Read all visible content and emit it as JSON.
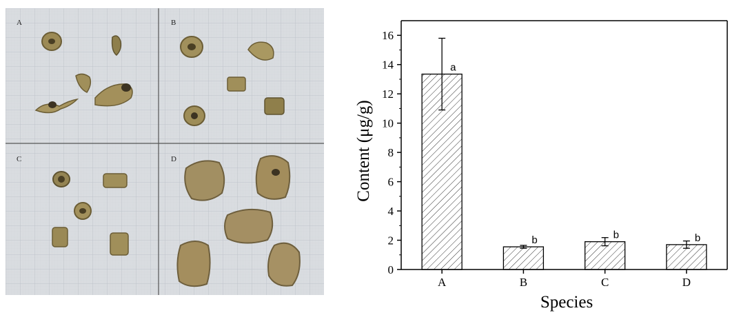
{
  "photo": {
    "quadrant_labels": [
      "A",
      "B",
      "C",
      "D"
    ],
    "background_color": "#d9dce0",
    "specimen_color": "#9c8a55"
  },
  "chart_data": {
    "type": "bar",
    "title": "",
    "xlabel": "Species",
    "ylabel": "Content (μg/g)",
    "categories": [
      "A",
      "B",
      "C",
      "D"
    ],
    "values": [
      13.35,
      1.55,
      1.9,
      1.7
    ],
    "errors": [
      2.45,
      0.1,
      0.28,
      0.25
    ],
    "significance_labels": [
      "a",
      "b",
      "b",
      "b"
    ],
    "ylim": [
      0,
      17
    ],
    "yticks": [
      0,
      2,
      4,
      6,
      8,
      10,
      12,
      14,
      16
    ],
    "bar_pattern": "diagonal-hatch",
    "grid": false,
    "legend": "none"
  }
}
